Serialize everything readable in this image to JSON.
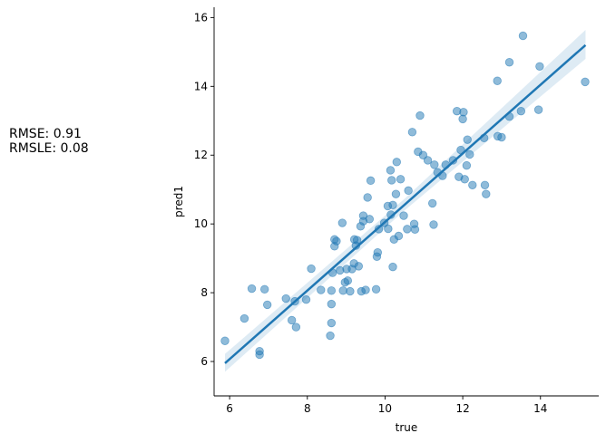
{
  "metrics": {
    "rmse": "RMSE: 0.91",
    "rmsle": "RMSLE: 0.08"
  },
  "chart_data": {
    "type": "scatter",
    "title": "",
    "xlabel": "true",
    "ylabel": "pred1",
    "xlim": [
      5.6,
      15.5
    ],
    "ylim": [
      5.0,
      16.3
    ],
    "xticks": [
      "6",
      "8",
      "10",
      "12",
      "14"
    ],
    "yticks": [
      "6",
      "8",
      "10",
      "12",
      "14",
      "16"
    ],
    "point_color": "#1f77b4",
    "line_color": "#1f77b4",
    "band_color": "#1f77b4",
    "regression_line": {
      "x": [
        5.88,
        15.16
      ],
      "y": [
        5.95,
        15.2
      ]
    },
    "confidence_band": {
      "x": [
        5.88,
        10.5,
        15.16
      ],
      "lower": [
        5.7,
        10.39,
        14.8
      ],
      "upper": [
        6.22,
        10.73,
        15.64
      ]
    },
    "points": [
      [
        5.88,
        6.6
      ],
      [
        6.38,
        7.25
      ],
      [
        6.57,
        8.12
      ],
      [
        6.77,
        6.2
      ],
      [
        6.77,
        6.3
      ],
      [
        6.9,
        8.1
      ],
      [
        6.97,
        7.65
      ],
      [
        7.45,
        7.83
      ],
      [
        7.6,
        7.2
      ],
      [
        7.68,
        7.75
      ],
      [
        7.71,
        7.0
      ],
      [
        7.97,
        7.8
      ],
      [
        8.1,
        8.7
      ],
      [
        8.35,
        8.08
      ],
      [
        8.59,
        6.75
      ],
      [
        8.62,
        7.12
      ],
      [
        8.62,
        7.67
      ],
      [
        8.62,
        8.06
      ],
      [
        8.65,
        8.58
      ],
      [
        8.7,
        9.35
      ],
      [
        8.7,
        9.55
      ],
      [
        8.75,
        9.5
      ],
      [
        8.84,
        8.65
      ],
      [
        8.9,
        10.03
      ],
      [
        8.92,
        8.06
      ],
      [
        8.97,
        8.3
      ],
      [
        9.01,
        8.69
      ],
      [
        9.04,
        8.35
      ],
      [
        9.1,
        8.04
      ],
      [
        9.15,
        8.69
      ],
      [
        9.2,
        8.85
      ],
      [
        9.21,
        9.55
      ],
      [
        9.25,
        9.37
      ],
      [
        9.28,
        9.53
      ],
      [
        9.32,
        8.77
      ],
      [
        9.37,
        9.93
      ],
      [
        9.39,
        8.04
      ],
      [
        9.44,
        10.08
      ],
      [
        9.44,
        10.24
      ],
      [
        9.5,
        8.08
      ],
      [
        9.55,
        10.77
      ],
      [
        9.6,
        10.14
      ],
      [
        9.63,
        11.26
      ],
      [
        9.77,
        8.1
      ],
      [
        9.79,
        9.05
      ],
      [
        9.81,
        9.17
      ],
      [
        9.84,
        9.85
      ],
      [
        9.98,
        10.03
      ],
      [
        10.07,
        10.52
      ],
      [
        10.08,
        9.86
      ],
      [
        10.14,
        11.56
      ],
      [
        10.15,
        10.27
      ],
      [
        10.17,
        11.27
      ],
      [
        10.2,
        10.55
      ],
      [
        10.2,
        8.75
      ],
      [
        10.23,
        9.55
      ],
      [
        10.28,
        10.87
      ],
      [
        10.3,
        11.8
      ],
      [
        10.35,
        9.65
      ],
      [
        10.4,
        11.3
      ],
      [
        10.48,
        10.24
      ],
      [
        10.57,
        9.85
      ],
      [
        10.6,
        10.97
      ],
      [
        10.7,
        12.67
      ],
      [
        10.75,
        10.0
      ],
      [
        10.77,
        9.84
      ],
      [
        10.85,
        12.1
      ],
      [
        10.9,
        13.15
      ],
      [
        10.98,
        12.0
      ],
      [
        11.1,
        11.85
      ],
      [
        11.22,
        10.6
      ],
      [
        11.25,
        9.98
      ],
      [
        11.27,
        11.72
      ],
      [
        11.35,
        11.5
      ],
      [
        11.48,
        11.4
      ],
      [
        11.56,
        11.72
      ],
      [
        11.75,
        11.85
      ],
      [
        11.85,
        13.28
      ],
      [
        11.9,
        11.37
      ],
      [
        11.95,
        12.15
      ],
      [
        12.0,
        13.05
      ],
      [
        12.02,
        13.25
      ],
      [
        12.05,
        11.3
      ],
      [
        12.1,
        11.7
      ],
      [
        12.12,
        12.45
      ],
      [
        12.18,
        12.02
      ],
      [
        12.25,
        11.13
      ],
      [
        12.55,
        12.5
      ],
      [
        12.57,
        11.13
      ],
      [
        12.6,
        10.87
      ],
      [
        12.89,
        14.16
      ],
      [
        12.9,
        12.55
      ],
      [
        13.0,
        12.52
      ],
      [
        13.2,
        13.12
      ],
      [
        13.2,
        14.7
      ],
      [
        13.5,
        13.28
      ],
      [
        13.55,
        15.47
      ],
      [
        13.95,
        13.32
      ],
      [
        13.98,
        14.58
      ],
      [
        15.15,
        14.13
      ]
    ]
  }
}
